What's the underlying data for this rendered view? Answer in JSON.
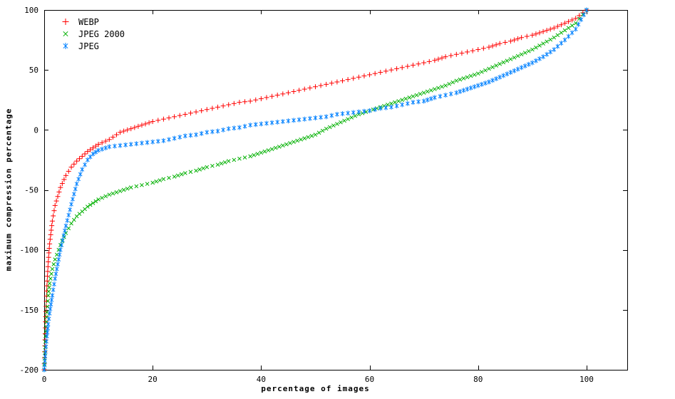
{
  "chart_data": {
    "type": "scatter",
    "title": "",
    "xlabel": "percentage of images",
    "ylabel": "maximum compression percentage",
    "xlim": [
      0,
      107.5
    ],
    "ylim": [
      -200,
      100
    ],
    "x_ticks": [
      0,
      20,
      40,
      60,
      80,
      100
    ],
    "y_ticks": [
      -200,
      -150,
      -100,
      -50,
      0,
      50,
      100
    ],
    "grid": false,
    "legend_position": "top-left",
    "x": [
      0,
      0.25,
      0.5,
      0.75,
      1,
      1.5,
      2,
      3,
      4,
      5,
      6,
      7,
      8,
      9,
      10,
      12,
      14,
      16,
      18,
      20,
      22,
      24,
      26,
      28,
      30,
      32,
      34,
      36,
      38,
      40,
      42,
      44,
      46,
      48,
      50,
      52,
      54,
      56,
      58,
      60,
      62,
      64,
      66,
      68,
      70,
      72,
      74,
      76,
      78,
      80,
      82,
      84,
      86,
      88,
      90,
      92,
      94,
      96,
      98,
      100
    ],
    "series": [
      {
        "name": "WEBP",
        "marker": "plus",
        "color": "#ff0000",
        "values": [
          -200,
          -160,
          -130,
          -110,
          -95,
          -76,
          -63,
          -48,
          -38,
          -31,
          -26,
          -22,
          -18,
          -15,
          -12,
          -8,
          -2,
          1,
          4,
          7,
          9,
          11,
          13,
          15,
          17,
          19,
          21,
          23,
          24,
          26,
          28,
          30,
          32,
          34,
          36,
          38,
          40,
          42,
          44,
          46,
          48,
          50,
          52,
          54,
          56,
          58,
          61,
          63,
          65,
          67,
          69,
          72,
          74,
          77,
          79,
          82,
          85,
          89,
          93,
          100
        ]
      },
      {
        "name": "JPEG 2000",
        "marker": "cross",
        "color": "#00b000",
        "values": [
          -200,
          -172,
          -152,
          -138,
          -128,
          -116,
          -108,
          -96,
          -86,
          -78,
          -72,
          -68,
          -64,
          -61,
          -58,
          -54,
          -51,
          -48,
          -46,
          -44,
          -41,
          -39,
          -36,
          -34,
          -31,
          -29,
          -26,
          -24,
          -22,
          -19,
          -16,
          -13,
          -10,
          -7,
          -4,
          1,
          5,
          9,
          13,
          16,
          19,
          22,
          25,
          28,
          31,
          34,
          37,
          41,
          44,
          47,
          51,
          55,
          59,
          63,
          67,
          72,
          77,
          83,
          89,
          100
        ]
      },
      {
        "name": "JPEG",
        "marker": "asterisk",
        "color": "#0080ff",
        "values": [
          -200,
          -185,
          -172,
          -162,
          -153,
          -138,
          -124,
          -100,
          -80,
          -62,
          -45,
          -33,
          -25,
          -20,
          -17,
          -14,
          -13,
          -12,
          -11,
          -10,
          -9,
          -7,
          -5,
          -4,
          -2,
          -1,
          1,
          2,
          4,
          5,
          6,
          7,
          8,
          9,
          10,
          11,
          13,
          14,
          15,
          16,
          18,
          19,
          21,
          23,
          24,
          27,
          29,
          31,
          34,
          37,
          40,
          44,
          48,
          52,
          56,
          61,
          67,
          75,
          84,
          100
        ]
      }
    ]
  }
}
